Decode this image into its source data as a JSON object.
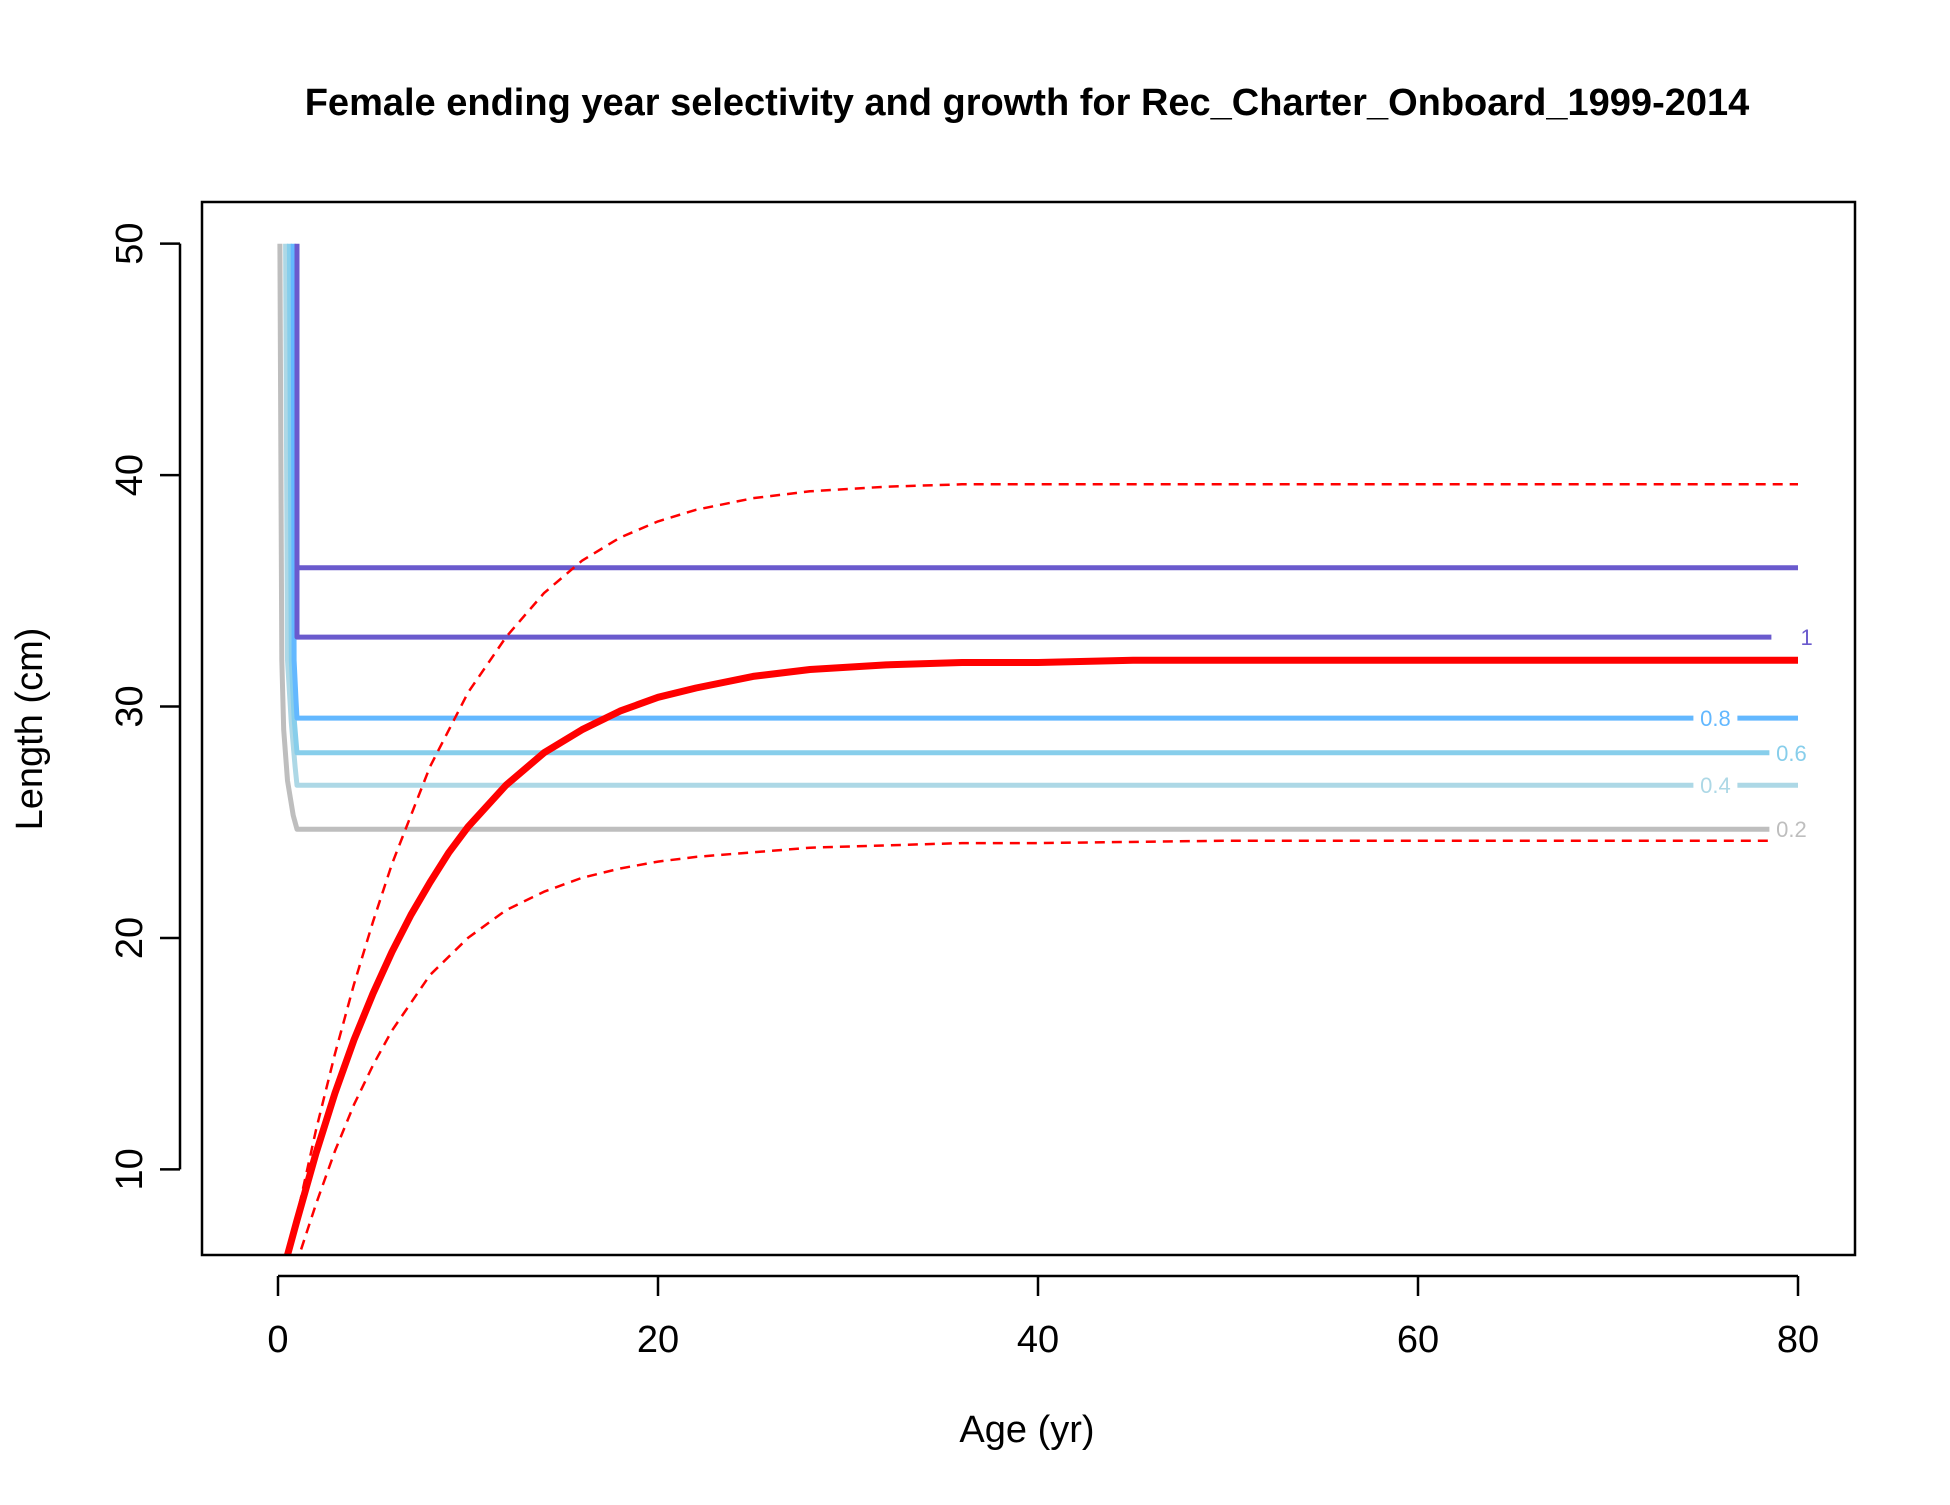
{
  "chart_data": {
    "type": "line",
    "title": "Female ending year selectivity and growth for Rec_Charter_Onboard_1999-2014",
    "xlabel": "Age (yr)",
    "ylabel": "Length (cm)",
    "xlim": [
      -4,
      83
    ],
    "ylim": [
      6.3,
      51.8
    ],
    "xticks": [
      0,
      20,
      40,
      60,
      80
    ],
    "yticks": [
      10,
      20,
      30,
      40,
      50
    ],
    "grid": false,
    "legend": "none",
    "growth_params": {
      "Linf": 32,
      "k": 0.12,
      "L1": 6.3,
      "a1": 0.5,
      "Linf_upper": 39.6,
      "Linf_lower": 24.2
    },
    "series": [
      {
        "style": "solid-thick",
        "color": "#ff0000",
        "x": [
          0.5,
          1,
          2,
          3,
          4,
          5,
          6,
          7,
          8,
          9,
          10,
          12,
          14,
          16,
          18,
          20,
          22,
          25,
          28,
          32,
          36,
          40,
          45,
          50,
          60,
          70,
          80
        ],
        "y": [
          6.3,
          7.8,
          10.7,
          13.3,
          15.6,
          17.6,
          19.4,
          21.0,
          22.4,
          23.7,
          24.8,
          26.6,
          28.0,
          29.0,
          29.8,
          30.4,
          30.8,
          31.3,
          31.6,
          31.8,
          31.9,
          31.9,
          32.0,
          32.0,
          32.0,
          32.0,
          32.0
        ]
      },
      {
        "style": "dashed",
        "color": "#ff0000",
        "x": [
          0.5,
          1,
          2,
          3,
          4,
          5,
          6,
          8,
          10,
          12,
          14,
          16,
          18,
          20,
          22,
          25,
          28,
          32,
          36,
          40,
          50,
          60,
          70,
          80
        ],
        "y": [
          6.3,
          8.0,
          11.7,
          15.0,
          18.0,
          20.7,
          23.2,
          27.4,
          30.6,
          33.0,
          34.9,
          36.3,
          37.3,
          38.0,
          38.5,
          39.0,
          39.3,
          39.5,
          39.6,
          39.6,
          39.6,
          39.6,
          39.6,
          39.6
        ]
      },
      {
        "style": "dashed",
        "color": "#ff0000",
        "x": [
          0.5,
          1,
          2,
          3,
          4,
          5,
          6,
          8,
          10,
          12,
          14,
          16,
          18,
          20,
          22,
          25,
          28,
          32,
          36,
          40,
          50,
          60,
          70,
          80
        ],
        "y": [
          5.2,
          6.0,
          8.5,
          10.8,
          12.8,
          14.5,
          16.0,
          18.4,
          20.0,
          21.2,
          22.0,
          22.6,
          23.0,
          23.3,
          23.5,
          23.7,
          23.9,
          24.0,
          24.1,
          24.1,
          24.2,
          24.2,
          24.2,
          24.2
        ]
      }
    ],
    "contours": [
      {
        "level": "0.2",
        "color": "#bebebe",
        "x": [
          0.1,
          0.2,
          0.3,
          0.5,
          0.8,
          1.0,
          80
        ],
        "y": [
          50,
          32.0,
          29.0,
          26.8,
          25.3,
          24.7,
          24.7
        ],
        "label_x": 78.6
      },
      {
        "level": "0.4",
        "color": "#add8e6",
        "x": [
          0.4,
          0.5,
          0.7,
          0.9,
          1.0,
          80
        ],
        "y": [
          50,
          32.0,
          29.3,
          27.4,
          26.6,
          26.6
        ],
        "label_x": 74.6
      },
      {
        "level": "0.6",
        "color": "#87ceeb",
        "x": [
          0.6,
          0.7,
          0.85,
          1.0,
          80
        ],
        "y": [
          50,
          32.0,
          29.5,
          28.0,
          28.0
        ],
        "label_x": 78.6
      },
      {
        "level": "0.8",
        "color": "#63b8ff",
        "x": [
          0.8,
          0.85,
          0.95,
          1.0,
          80
        ],
        "y": [
          50,
          32.0,
          30.2,
          29.5,
          29.5
        ],
        "label_x": 74.6
      },
      {
        "level": "1",
        "color": "#6a5acd",
        "x": [
          1.0,
          1.0,
          80
        ],
        "y": [
          50,
          36.0,
          36.0
        ],
        "label_x": null
      },
      {
        "level": "",
        "color": "#6a5acd",
        "x": [
          1.0,
          1.0,
          78.6
        ],
        "y": [
          36.0,
          33.0,
          33.0
        ],
        "label_x": 79.4
      }
    ]
  }
}
